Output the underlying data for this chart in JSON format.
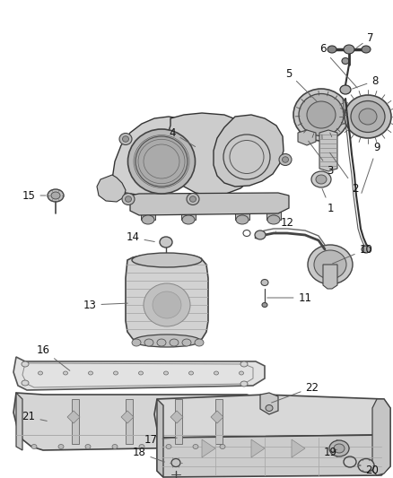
{
  "bg_color": "#ffffff",
  "fig_width": 4.38,
  "fig_height": 5.33,
  "dpi": 100,
  "label_fontsize": 8.5,
  "label_color": "#111111",
  "line_color": "#666666",
  "line_width": 0.7,
  "part_color": "#d4d4d4",
  "edge_color": "#333333",
  "dark_part_color": "#aaaaaa",
  "light_part_color": "#ebebeb"
}
